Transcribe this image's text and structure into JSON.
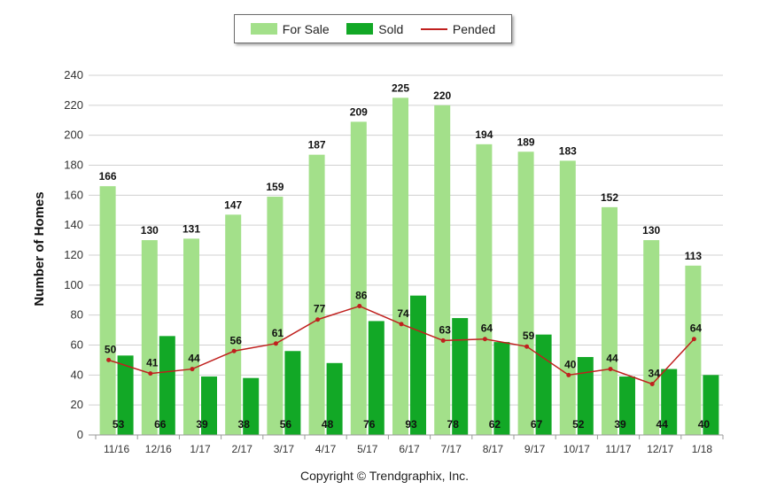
{
  "legend": {
    "for_sale": "For Sale",
    "sold": "Sold",
    "pended": "Pended"
  },
  "copyright": "Copyright © Trendgraphix, Inc.",
  "colors": {
    "for_sale": "#a3e08a",
    "sold": "#12a826",
    "pended": "#c0201e",
    "grid": "#d0d0d0"
  },
  "chart_data": {
    "type": "bar",
    "ylabel": "Number of Homes",
    "xlabel": "",
    "ylim": [
      0,
      240
    ],
    "yticks": [
      0,
      20,
      40,
      60,
      80,
      100,
      120,
      140,
      160,
      180,
      200,
      220,
      240
    ],
    "grid": true,
    "legend_position": "top-center",
    "categories": [
      "11/16",
      "12/16",
      "1/17",
      "2/17",
      "3/17",
      "4/17",
      "5/17",
      "6/17",
      "7/17",
      "8/17",
      "9/17",
      "10/17",
      "11/17",
      "12/17",
      "1/18"
    ],
    "series": [
      {
        "name": "For Sale",
        "type": "bar",
        "values": [
          166,
          130,
          131,
          147,
          159,
          187,
          209,
          225,
          220,
          194,
          189,
          183,
          152,
          130,
          113
        ]
      },
      {
        "name": "Sold",
        "type": "bar",
        "values": [
          53,
          66,
          39,
          38,
          56,
          48,
          76,
          93,
          78,
          62,
          67,
          52,
          39,
          44,
          40
        ]
      },
      {
        "name": "Pended",
        "type": "line",
        "values": [
          50,
          41,
          44,
          56,
          61,
          77,
          86,
          74,
          63,
          64,
          59,
          40,
          44,
          34,
          64
        ]
      }
    ]
  }
}
